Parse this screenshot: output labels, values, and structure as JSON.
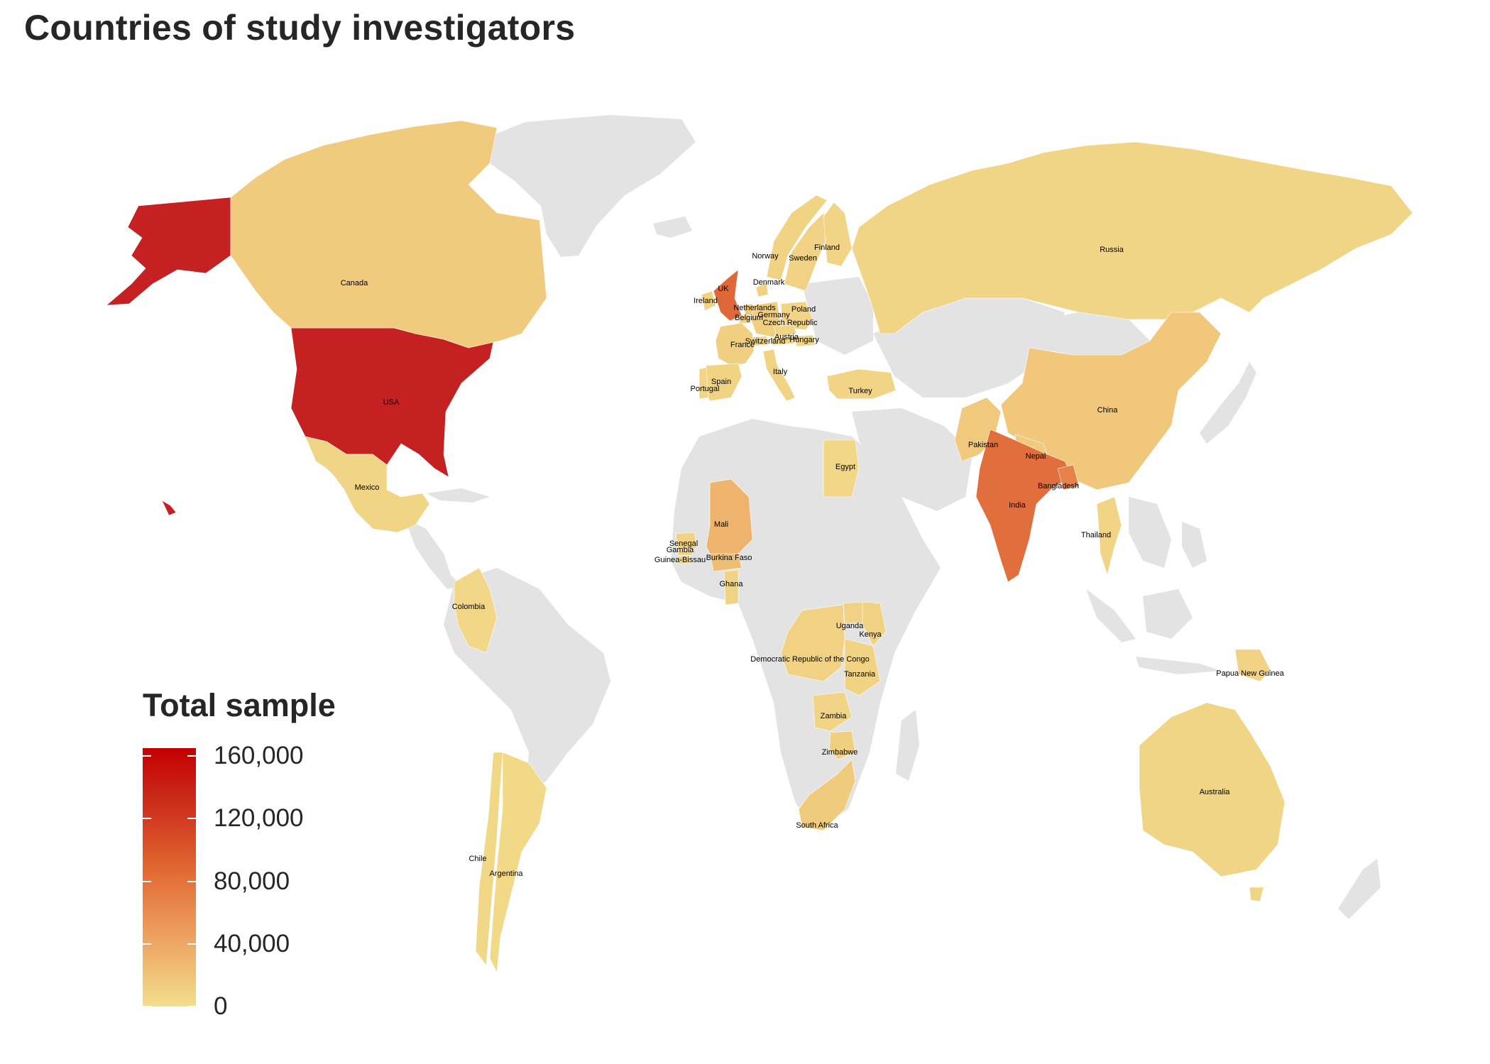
{
  "title": "Countries of study investigators",
  "legend": {
    "title": "Total sample",
    "min": 0,
    "max": 165000,
    "ticks": [
      {
        "value": 160000,
        "label": "160,000"
      },
      {
        "value": 120000,
        "label": "120,000"
      },
      {
        "value": 80000,
        "label": "80,000"
      },
      {
        "value": 40000,
        "label": "40,000"
      },
      {
        "value": 0,
        "label": "0"
      }
    ]
  },
  "colors": {
    "no_data": "#E3E3E3",
    "low": "#F2DE8C",
    "high": "#C41B21"
  },
  "countries": [
    {
      "name": "USA",
      "value": 160000
    },
    {
      "name": "Canada",
      "value": 18000
    },
    {
      "name": "Mexico",
      "value": 8000
    },
    {
      "name": "Colombia",
      "value": 7000
    },
    {
      "name": "Chile",
      "value": 6000
    },
    {
      "name": "Argentina",
      "value": 5000
    },
    {
      "name": "UK",
      "value": 100000
    },
    {
      "name": "Ireland",
      "value": 12000
    },
    {
      "name": "Norway",
      "value": 10000
    },
    {
      "name": "Sweden",
      "value": 12000
    },
    {
      "name": "Finland",
      "value": 9000
    },
    {
      "name": "Denmark",
      "value": 12000
    },
    {
      "name": "Netherlands",
      "value": 22000
    },
    {
      "name": "Belgium",
      "value": 12000
    },
    {
      "name": "Germany",
      "value": 15000
    },
    {
      "name": "Poland",
      "value": 9000
    },
    {
      "name": "Czech Republic",
      "value": 8000
    },
    {
      "name": "Austria",
      "value": 8000
    },
    {
      "name": "Switzerland",
      "value": 10000
    },
    {
      "name": "Hungary",
      "value": 8000
    },
    {
      "name": "France",
      "value": 14000
    },
    {
      "name": "Italy",
      "value": 10000
    },
    {
      "name": "Spain",
      "value": 10000
    },
    {
      "name": "Portugal",
      "value": 9000
    },
    {
      "name": "Turkey",
      "value": 9000
    },
    {
      "name": "Russia",
      "value": 8000
    },
    {
      "name": "China",
      "value": 22000
    },
    {
      "name": "Pakistan",
      "value": 20000
    },
    {
      "name": "Nepal",
      "value": 18000
    },
    {
      "name": "India",
      "value": 95000
    },
    {
      "name": "Bangladesh",
      "value": 80000
    },
    {
      "name": "Thailand",
      "value": 9000
    },
    {
      "name": "Papua New Guinea",
      "value": 12000
    },
    {
      "name": "Australia",
      "value": 8000
    },
    {
      "name": "Egypt",
      "value": 7000
    },
    {
      "name": "Mali",
      "value": 40000
    },
    {
      "name": "Senegal",
      "value": 12000
    },
    {
      "name": "Gambia",
      "value": 12000
    },
    {
      "name": "Guinea-Bissau",
      "value": 10000
    },
    {
      "name": "Burkina Faso",
      "value": 30000
    },
    {
      "name": "Ghana",
      "value": 10000
    },
    {
      "name": "Uganda",
      "value": 12000
    },
    {
      "name": "Kenya",
      "value": 12000
    },
    {
      "name": "Democratic Republic of the Congo",
      "value": 12000
    },
    {
      "name": "Tanzania",
      "value": 10000
    },
    {
      "name": "Zambia",
      "value": 9000
    },
    {
      "name": "Zimbabwe",
      "value": 14000
    },
    {
      "name": "South Africa",
      "value": 18000
    }
  ]
}
